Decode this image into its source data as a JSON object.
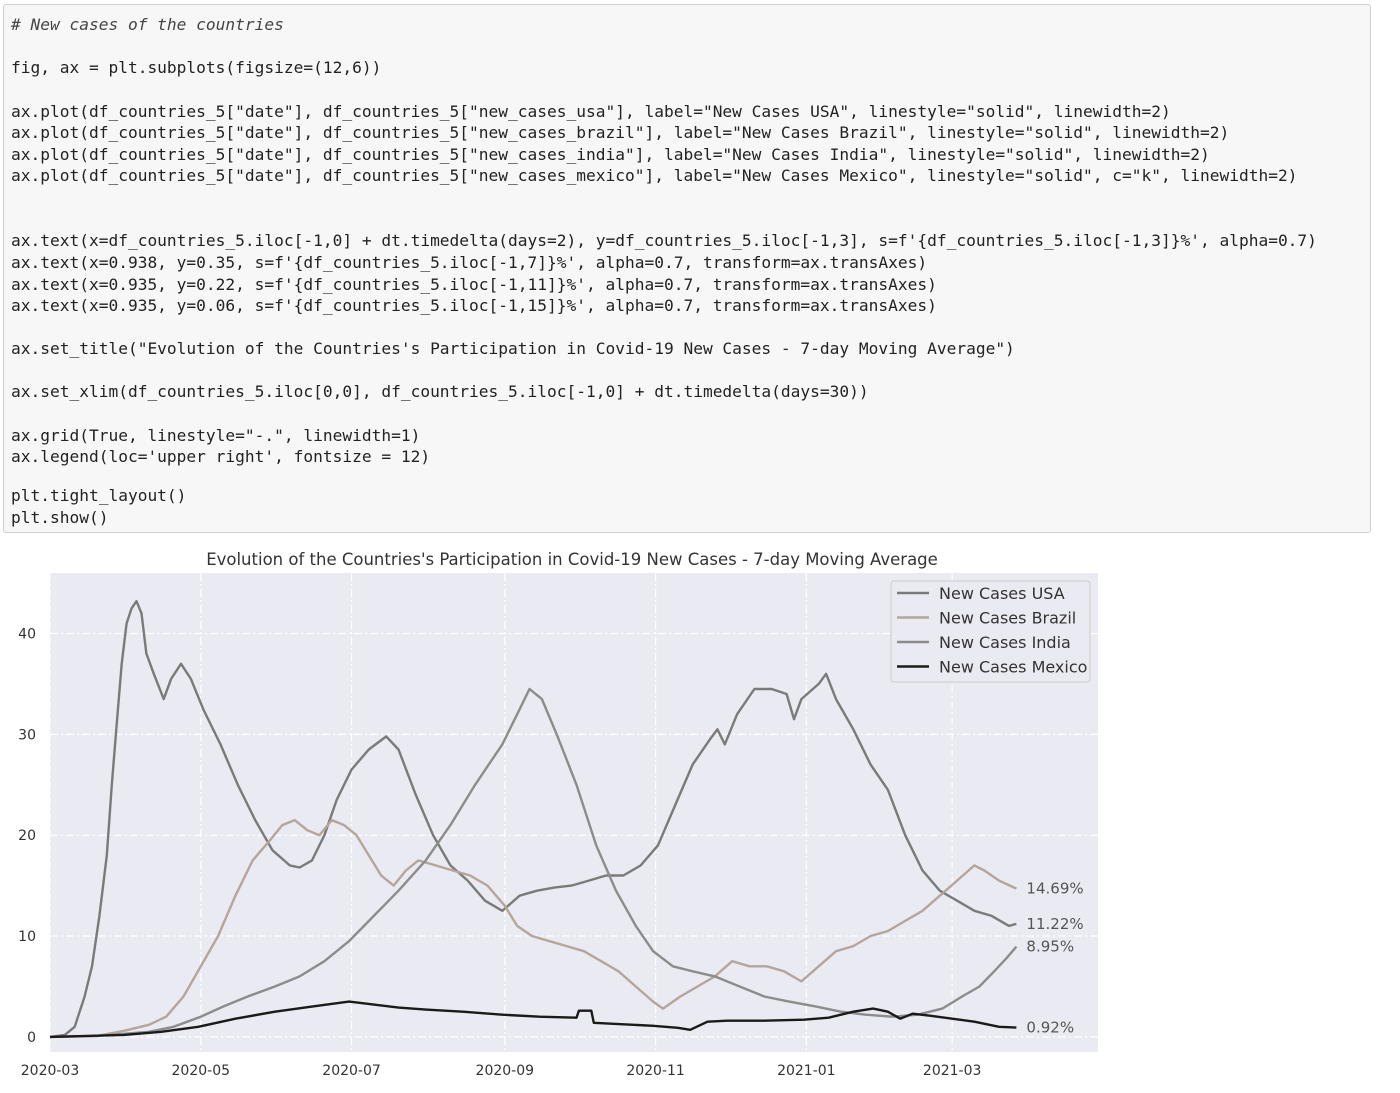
{
  "code": {
    "lines": [
      {
        "text": "# New cases of the countries",
        "style": "comment"
      },
      {
        "text": "fig, ax = plt.subplots(figsize=(12,6))",
        "style": "code"
      },
      {
        "text": "ax.plot(df_countries_5[\"date\"], df_countries_5[\"new_cases_usa\"], label=\"New Cases USA\", linestyle=\"solid\", linewidth=2)",
        "style": "code"
      },
      {
        "text": "ax.plot(df_countries_5[\"date\"], df_countries_5[\"new_cases_brazil\"], label=\"New Cases Brazil\", linestyle=\"solid\", linewidth=2)",
        "style": "code"
      },
      {
        "text": "ax.plot(df_countries_5[\"date\"], df_countries_5[\"new_cases_india\"], label=\"New Cases India\", linestyle=\"solid\", linewidth=2)",
        "style": "code"
      },
      {
        "text": "ax.plot(df_countries_5[\"date\"], df_countries_5[\"new_cases_mexico\"], label=\"New Cases Mexico\", linestyle=\"solid\", c=\"k\", linewidth=2)",
        "style": "code"
      },
      {
        "text": "ax.text(x=df_countries_5.iloc[-1,0] + dt.timedelta(days=2), y=df_countries_5.iloc[-1,3], s=f'{df_countries_5.iloc[-1,3]}%', alpha=0.7)",
        "style": "code"
      },
      {
        "text": "ax.text(x=0.938, y=0.35, s=f'{df_countries_5.iloc[-1,7]}%', alpha=0.7, transform=ax.transAxes)",
        "style": "code"
      },
      {
        "text": "ax.text(x=0.935, y=0.22, s=f'{df_countries_5.iloc[-1,11]}%', alpha=0.7, transform=ax.transAxes)",
        "style": "code"
      },
      {
        "text": "ax.text(x=0.935, y=0.06, s=f'{df_countries_5.iloc[-1,15]}%', alpha=0.7, transform=ax.transAxes)",
        "style": "code"
      },
      {
        "text": "ax.set_title(\"Evolution of the Countries's Participation in Covid-19 New Cases - 7-day Moving Average\")",
        "style": "code"
      },
      {
        "text": "ax.set_xlim(df_countries_5.iloc[0,0], df_countries_5.iloc[-1,0] + dt.timedelta(days=30))",
        "style": "code"
      },
      {
        "text": "ax.grid(True, linestyle=\"-.\", linewidth=1)",
        "style": "code"
      },
      {
        "text": "ax.legend(loc='upper right', fontsize = 12)",
        "style": "code"
      },
      {
        "text": "plt.tight_layout()",
        "style": "code"
      },
      {
        "text": "plt.show()",
        "style": "code"
      }
    ]
  },
  "chart_data": {
    "type": "line",
    "title": "Evolution of the Countries's Participation in Covid-19 New Cases - 7-day Moving Average",
    "xlabel": "",
    "ylabel": "",
    "xlim": [
      "2020-03-01",
      "2021-04-29"
    ],
    "ylim": [
      -1.5,
      46
    ],
    "grid": true,
    "legend_position": "upper right",
    "x_tick_labels": [
      "2020-03",
      "2020-05",
      "2020-07",
      "2020-09",
      "2020-11",
      "2021-01",
      "2021-03"
    ],
    "x_ticks": [
      "2020-03-01",
      "2020-05-01",
      "2020-07-01",
      "2020-09-01",
      "2020-11-01",
      "2021-01-01",
      "2021-03-01"
    ],
    "y_ticks": [
      0,
      10,
      20,
      30,
      40
    ],
    "y_tick_labels": [
      "0",
      "10",
      "20",
      "30",
      "40"
    ],
    "background": "#eaeaf2",
    "series": [
      {
        "name": "New Cases USA",
        "color": "#7a7a7a",
        "end_label": "11.22%",
        "points": [
          [
            "2020-03-01",
            0
          ],
          [
            "2020-03-07",
            0.2
          ],
          [
            "2020-03-11",
            1
          ],
          [
            "2020-03-15",
            4
          ],
          [
            "2020-03-18",
            7
          ],
          [
            "2020-03-21",
            12
          ],
          [
            "2020-03-24",
            18
          ],
          [
            "2020-03-26",
            25
          ],
          [
            "2020-03-28",
            31
          ],
          [
            "2020-03-30",
            37
          ],
          [
            "2020-04-01",
            41
          ],
          [
            "2020-04-03",
            42.5
          ],
          [
            "2020-04-05",
            43.2
          ],
          [
            "2020-04-07",
            42
          ],
          [
            "2020-04-09",
            38
          ],
          [
            "2020-04-12",
            36
          ],
          [
            "2020-04-16",
            33.5
          ],
          [
            "2020-04-19",
            35.5
          ],
          [
            "2020-04-23",
            37
          ],
          [
            "2020-04-27",
            35.5
          ],
          [
            "2020-05-02",
            32.5
          ],
          [
            "2020-05-09",
            29
          ],
          [
            "2020-05-16",
            25
          ],
          [
            "2020-05-23",
            21.5
          ],
          [
            "2020-05-30",
            18.5
          ],
          [
            "2020-06-06",
            17
          ],
          [
            "2020-06-10",
            16.8
          ],
          [
            "2020-06-15",
            17.5
          ],
          [
            "2020-06-20",
            20
          ],
          [
            "2020-06-25",
            23.5
          ],
          [
            "2020-07-01",
            26.5
          ],
          [
            "2020-07-08",
            28.5
          ],
          [
            "2020-07-15",
            29.8
          ],
          [
            "2020-07-20",
            28.5
          ],
          [
            "2020-07-27",
            24
          ],
          [
            "2020-08-03",
            20
          ],
          [
            "2020-08-10",
            17
          ],
          [
            "2020-08-17",
            15.5
          ],
          [
            "2020-08-24",
            13.5
          ],
          [
            "2020-08-31",
            12.5
          ],
          [
            "2020-09-07",
            14
          ],
          [
            "2020-09-14",
            14.5
          ],
          [
            "2020-09-21",
            14.8
          ],
          [
            "2020-09-28",
            15
          ],
          [
            "2020-10-05",
            15.5
          ],
          [
            "2020-10-12",
            16
          ],
          [
            "2020-10-19",
            16
          ],
          [
            "2020-10-26",
            17
          ],
          [
            "2020-11-02",
            19
          ],
          [
            "2020-11-09",
            23
          ],
          [
            "2020-11-16",
            27
          ],
          [
            "2020-11-23",
            29.5
          ],
          [
            "2020-11-26",
            30.5
          ],
          [
            "2020-11-29",
            29
          ],
          [
            "2020-12-04",
            32
          ],
          [
            "2020-12-11",
            34.5
          ],
          [
            "2020-12-18",
            34.5
          ],
          [
            "2020-12-24",
            34
          ],
          [
            "2020-12-27",
            31.5
          ],
          [
            "2020-12-30",
            33.5
          ],
          [
            "2021-01-06",
            35
          ],
          [
            "2021-01-09",
            36
          ],
          [
            "2021-01-13",
            33.5
          ],
          [
            "2021-01-20",
            30.5
          ],
          [
            "2021-01-27",
            27
          ],
          [
            "2021-02-03",
            24.5
          ],
          [
            "2021-02-10",
            20
          ],
          [
            "2021-02-17",
            16.5
          ],
          [
            "2021-02-24",
            14.5
          ],
          [
            "2021-03-03",
            13.5
          ],
          [
            "2021-03-10",
            12.5
          ],
          [
            "2021-03-17",
            12
          ],
          [
            "2021-03-24",
            11
          ],
          [
            "2021-03-27",
            11.2
          ]
        ]
      },
      {
        "name": "New Cases Brazil",
        "color": "#b5a59a",
        "end_label": "14.69%",
        "points": [
          [
            "2020-03-01",
            0
          ],
          [
            "2020-03-20",
            0.1
          ],
          [
            "2020-03-31",
            0.6
          ],
          [
            "2020-04-10",
            1.2
          ],
          [
            "2020-04-17",
            2
          ],
          [
            "2020-04-24",
            4
          ],
          [
            "2020-05-01",
            7
          ],
          [
            "2020-05-08",
            10
          ],
          [
            "2020-05-15",
            14
          ],
          [
            "2020-05-22",
            17.5
          ],
          [
            "2020-05-29",
            19.5
          ],
          [
            "2020-06-03",
            21
          ],
          [
            "2020-06-08",
            21.5
          ],
          [
            "2020-06-13",
            20.5
          ],
          [
            "2020-06-18",
            20
          ],
          [
            "2020-06-23",
            21.5
          ],
          [
            "2020-06-28",
            21
          ],
          [
            "2020-07-03",
            20
          ],
          [
            "2020-07-08",
            18
          ],
          [
            "2020-07-13",
            16
          ],
          [
            "2020-07-18",
            15
          ],
          [
            "2020-07-23",
            16.5
          ],
          [
            "2020-07-28",
            17.5
          ],
          [
            "2020-08-04",
            17
          ],
          [
            "2020-08-11",
            16.5
          ],
          [
            "2020-08-18",
            16
          ],
          [
            "2020-08-25",
            15
          ],
          [
            "2020-09-01",
            13
          ],
          [
            "2020-09-06",
            11
          ],
          [
            "2020-09-12",
            10
          ],
          [
            "2020-09-19",
            9.5
          ],
          [
            "2020-09-26",
            9
          ],
          [
            "2020-10-03",
            8.5
          ],
          [
            "2020-10-10",
            7.5
          ],
          [
            "2020-10-17",
            6.5
          ],
          [
            "2020-10-24",
            5
          ],
          [
            "2020-10-31",
            3.5
          ],
          [
            "2020-11-04",
            2.8
          ],
          [
            "2020-11-11",
            4
          ],
          [
            "2020-11-18",
            5
          ],
          [
            "2020-11-25",
            6
          ],
          [
            "2020-12-02",
            7.5
          ],
          [
            "2020-12-09",
            7
          ],
          [
            "2020-12-16",
            7
          ],
          [
            "2020-12-23",
            6.5
          ],
          [
            "2020-12-30",
            5.5
          ],
          [
            "2021-01-06",
            7
          ],
          [
            "2021-01-13",
            8.5
          ],
          [
            "2021-01-20",
            9
          ],
          [
            "2021-01-27",
            10
          ],
          [
            "2021-02-03",
            10.5
          ],
          [
            "2021-02-10",
            11.5
          ],
          [
            "2021-02-17",
            12.5
          ],
          [
            "2021-02-24",
            14
          ],
          [
            "2021-03-03",
            15.5
          ],
          [
            "2021-03-10",
            17
          ],
          [
            "2021-03-14",
            16.5
          ],
          [
            "2021-03-20",
            15.5
          ],
          [
            "2021-03-27",
            14.7
          ]
        ]
      },
      {
        "name": "New Cases India",
        "color": "#8c8c8c",
        "end_label": "8.95%",
        "points": [
          [
            "2020-03-01",
            0
          ],
          [
            "2020-03-20",
            0.1
          ],
          [
            "2020-03-31",
            0.3
          ],
          [
            "2020-04-10",
            0.5
          ],
          [
            "2020-04-20",
            1
          ],
          [
            "2020-05-01",
            2
          ],
          [
            "2020-05-10",
            3
          ],
          [
            "2020-05-20",
            4
          ],
          [
            "2020-05-31",
            5
          ],
          [
            "2020-06-10",
            6
          ],
          [
            "2020-06-20",
            7.5
          ],
          [
            "2020-06-30",
            9.5
          ],
          [
            "2020-07-10",
            12
          ],
          [
            "2020-07-20",
            14.5
          ],
          [
            "2020-07-31",
            17.5
          ],
          [
            "2020-08-10",
            21
          ],
          [
            "2020-08-20",
            25
          ],
          [
            "2020-08-31",
            29
          ],
          [
            "2020-09-06",
            32
          ],
          [
            "2020-09-11",
            34.5
          ],
          [
            "2020-09-16",
            33.5
          ],
          [
            "2020-09-22",
            30
          ],
          [
            "2020-09-30",
            25
          ],
          [
            "2020-10-08",
            19
          ],
          [
            "2020-10-16",
            14.5
          ],
          [
            "2020-10-24",
            11
          ],
          [
            "2020-10-31",
            8.5
          ],
          [
            "2020-11-08",
            7
          ],
          [
            "2020-11-16",
            6.5
          ],
          [
            "2020-11-25",
            6
          ],
          [
            "2020-12-05",
            5
          ],
          [
            "2020-12-15",
            4
          ],
          [
            "2020-12-25",
            3.5
          ],
          [
            "2021-01-05",
            3
          ],
          [
            "2021-01-15",
            2.5
          ],
          [
            "2021-01-25",
            2.2
          ],
          [
            "2021-02-05",
            2
          ],
          [
            "2021-02-15",
            2.2
          ],
          [
            "2021-02-25",
            2.8
          ],
          [
            "2021-03-05",
            4
          ],
          [
            "2021-03-12",
            5
          ],
          [
            "2021-03-18",
            6.5
          ],
          [
            "2021-03-23",
            7.8
          ],
          [
            "2021-03-27",
            8.95
          ]
        ]
      },
      {
        "name": "New Cases Mexico",
        "color": "#1a1a1a",
        "end_label": "0.92%",
        "points": [
          [
            "2020-03-01",
            0
          ],
          [
            "2020-03-31",
            0.2
          ],
          [
            "2020-04-15",
            0.5
          ],
          [
            "2020-04-30",
            1
          ],
          [
            "2020-05-15",
            1.8
          ],
          [
            "2020-05-31",
            2.5
          ],
          [
            "2020-06-15",
            3
          ],
          [
            "2020-06-30",
            3.5
          ],
          [
            "2020-07-10",
            3.2
          ],
          [
            "2020-07-20",
            2.9
          ],
          [
            "2020-07-31",
            2.7
          ],
          [
            "2020-08-15",
            2.5
          ],
          [
            "2020-08-31",
            2.2
          ],
          [
            "2020-09-15",
            2
          ],
          [
            "2020-09-30",
            1.9
          ],
          [
            "2020-10-01",
            2.6
          ],
          [
            "2020-10-06",
            2.6
          ],
          [
            "2020-10-07",
            1.4
          ],
          [
            "2020-10-15",
            1.3
          ],
          [
            "2020-10-31",
            1.1
          ],
          [
            "2020-11-10",
            0.9
          ],
          [
            "2020-11-15",
            0.7
          ],
          [
            "2020-11-22",
            1.5
          ],
          [
            "2020-11-30",
            1.6
          ],
          [
            "2020-12-15",
            1.6
          ],
          [
            "2020-12-31",
            1.7
          ],
          [
            "2021-01-10",
            1.9
          ],
          [
            "2021-01-20",
            2.5
          ],
          [
            "2021-01-28",
            2.8
          ],
          [
            "2021-02-03",
            2.5
          ],
          [
            "2021-02-08",
            1.8
          ],
          [
            "2021-02-13",
            2.3
          ],
          [
            "2021-02-20",
            2.1
          ],
          [
            "2021-03-01",
            1.8
          ],
          [
            "2021-03-10",
            1.5
          ],
          [
            "2021-03-20",
            1.0
          ],
          [
            "2021-03-27",
            0.92
          ]
        ]
      }
    ]
  }
}
